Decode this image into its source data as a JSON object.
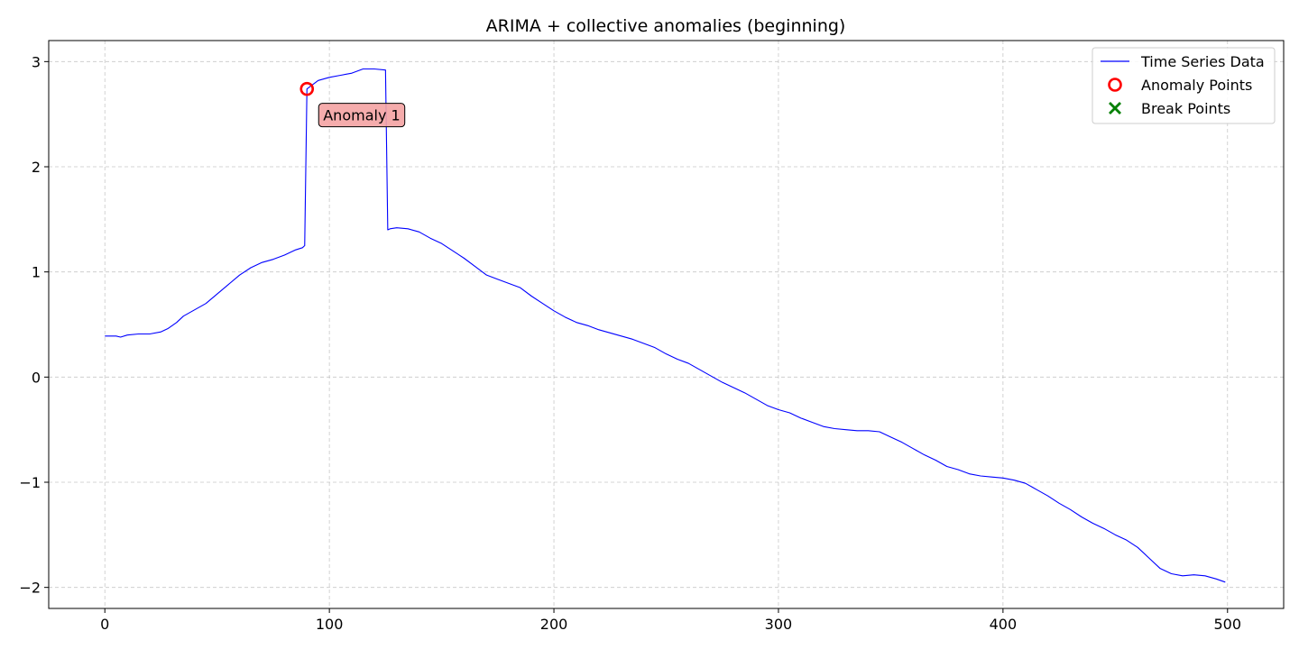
{
  "chart_data": {
    "type": "line",
    "title": "ARIMA + collective anomalies (beginning)",
    "xlabel": "",
    "ylabel": "",
    "xlim": [
      -25,
      525
    ],
    "ylim": [
      -2.2,
      3.2
    ],
    "xticks": [
      0,
      100,
      200,
      300,
      400,
      500
    ],
    "xtick_labels": [
      "0",
      "100",
      "200",
      "300",
      "400",
      "500"
    ],
    "yticks": [
      -2,
      -1,
      0,
      1,
      2,
      3
    ],
    "ytick_labels": [
      "−2",
      "−1",
      "0",
      "1",
      "2",
      "3"
    ],
    "grid": true,
    "legend_position": "top-right",
    "legend": [
      {
        "label": "Time Series Data",
        "marker": "line",
        "color": "#0000ff"
      },
      {
        "label": "Anomaly Points",
        "marker": "circle",
        "color": "#ff0000"
      },
      {
        "label": "Break Points",
        "marker": "x",
        "color": "#008000"
      }
    ],
    "series": [
      {
        "name": "Time Series Data",
        "color": "#0000ff",
        "x": [
          0,
          5,
          7,
          10,
          15,
          20,
          25,
          28,
          32,
          35,
          40,
          45,
          50,
          55,
          60,
          65,
          70,
          75,
          80,
          85,
          88,
          89,
          90,
          95,
          100,
          105,
          110,
          115,
          120,
          125,
          126,
          127,
          130,
          135,
          140,
          145,
          150,
          155,
          160,
          165,
          170,
          175,
          180,
          185,
          190,
          195,
          200,
          205,
          210,
          215,
          220,
          225,
          230,
          235,
          240,
          245,
          250,
          255,
          260,
          265,
          270,
          275,
          280,
          285,
          290,
          295,
          300,
          305,
          310,
          315,
          320,
          325,
          330,
          335,
          340,
          345,
          350,
          355,
          360,
          365,
          370,
          375,
          380,
          385,
          390,
          395,
          400,
          405,
          410,
          415,
          420,
          425,
          430,
          435,
          440,
          445,
          450,
          455,
          460,
          465,
          470,
          475,
          480,
          485,
          490,
          495,
          499
        ],
        "y": [
          0.39,
          0.39,
          0.38,
          0.4,
          0.41,
          0.41,
          0.43,
          0.46,
          0.52,
          0.58,
          0.64,
          0.7,
          0.79,
          0.88,
          0.97,
          1.04,
          1.09,
          1.12,
          1.16,
          1.21,
          1.23,
          1.25,
          2.74,
          2.82,
          2.85,
          2.87,
          2.89,
          2.93,
          2.93,
          2.92,
          1.4,
          1.41,
          1.42,
          1.41,
          1.38,
          1.32,
          1.27,
          1.2,
          1.13,
          1.05,
          0.97,
          0.93,
          0.89,
          0.85,
          0.77,
          0.7,
          0.63,
          0.57,
          0.52,
          0.49,
          0.45,
          0.42,
          0.39,
          0.36,
          0.32,
          0.28,
          0.22,
          0.17,
          0.13,
          0.07,
          0.01,
          -0.05,
          -0.1,
          -0.15,
          -0.21,
          -0.27,
          -0.31,
          -0.34,
          -0.39,
          -0.43,
          -0.47,
          -0.49,
          -0.5,
          -0.51,
          -0.51,
          -0.52,
          -0.57,
          -0.62,
          -0.68,
          -0.74,
          -0.79,
          -0.85,
          -0.88,
          -0.92,
          -0.94,
          -0.95,
          -0.96,
          -0.98,
          -1.01,
          -1.07,
          -1.13,
          -1.2,
          -1.26,
          -1.33,
          -1.39,
          -1.44,
          -1.5,
          -1.55,
          -1.62,
          -1.72,
          -1.82,
          -1.87,
          -1.89,
          -1.88,
          -1.89,
          -1.92,
          -1.95
        ]
      }
    ],
    "anomaly_points": [
      {
        "x": 90,
        "y": 2.74
      }
    ],
    "annotations": [
      {
        "text": "Anomaly 1",
        "x": 90,
        "y": 2.74,
        "color": "#f4a3a3"
      }
    ]
  }
}
